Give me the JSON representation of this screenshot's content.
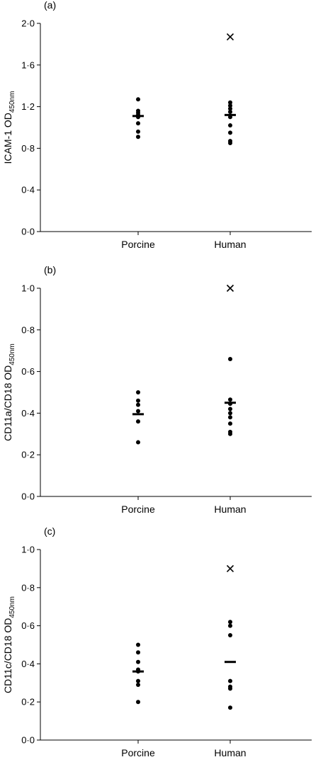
{
  "chart_data": [
    {
      "type": "scatter",
      "panel_label": "(a)",
      "ylabel": {
        "main": "ICAM-1 OD",
        "sub": "450nm"
      },
      "ylim": [
        0.0,
        2.0
      ],
      "yticks": [
        "0·0",
        "0·4",
        "0·8",
        "1·2",
        "1·6",
        "2·0"
      ],
      "ytick_values": [
        0.0,
        0.4,
        0.8,
        1.2,
        1.6,
        2.0
      ],
      "categories": [
        "Porcine",
        "Human"
      ],
      "series": [
        {
          "category": "Porcine",
          "points": [
            1.27,
            1.16,
            1.14,
            1.12,
            1.1,
            1.04,
            0.96,
            0.91
          ],
          "mean": 1.11
        },
        {
          "category": "Human",
          "points": [
            1.24,
            1.21,
            1.18,
            1.15,
            1.1,
            1.02,
            0.95,
            0.87,
            0.85
          ],
          "mean": 1.12
        }
      ],
      "outliers": [
        {
          "category": "Human",
          "value": 1.87,
          "marker": "x"
        }
      ],
      "grid": false
    },
    {
      "type": "scatter",
      "panel_label": "(b)",
      "ylabel": {
        "main": "CD11a/CD18 OD",
        "sub": "450nm"
      },
      "ylim": [
        0.0,
        1.0
      ],
      "yticks": [
        "0·0",
        "0·2",
        "0·4",
        "0·6",
        "0·8",
        "1·0"
      ],
      "ytick_values": [
        0.0,
        0.2,
        0.4,
        0.6,
        0.8,
        1.0
      ],
      "categories": [
        "Porcine",
        "Human"
      ],
      "series": [
        {
          "category": "Porcine",
          "points": [
            0.5,
            0.46,
            0.44,
            0.41,
            0.36,
            0.26
          ],
          "mean": 0.395
        },
        {
          "category": "Human",
          "points": [
            0.66,
            0.465,
            0.445,
            0.42,
            0.4,
            0.38,
            0.35,
            0.31,
            0.3
          ],
          "mean": 0.45
        }
      ],
      "outliers": [
        {
          "category": "Human",
          "value": 1.0,
          "marker": "x"
        }
      ],
      "grid": false
    },
    {
      "type": "scatter",
      "panel_label": "(c)",
      "ylabel": {
        "main": "CD11c/CD18 OD",
        "sub": "450nm"
      },
      "ylim": [
        0.0,
        1.0
      ],
      "yticks": [
        "0·0",
        "0·2",
        "0·4",
        "0·6",
        "0·8",
        "1·0"
      ],
      "ytick_values": [
        0.0,
        0.2,
        0.4,
        0.6,
        0.8,
        1.0
      ],
      "categories": [
        "Porcine",
        "Human"
      ],
      "series": [
        {
          "category": "Porcine",
          "points": [
            0.5,
            0.46,
            0.41,
            0.37,
            0.36,
            0.31,
            0.29,
            0.2
          ],
          "mean": 0.36
        },
        {
          "category": "Human",
          "points": [
            0.62,
            0.6,
            0.55,
            0.31,
            0.28,
            0.27,
            0.17
          ],
          "mean": 0.41
        }
      ],
      "outliers": [
        {
          "category": "Human",
          "value": 0.9,
          "marker": "x"
        }
      ],
      "grid": false
    }
  ]
}
